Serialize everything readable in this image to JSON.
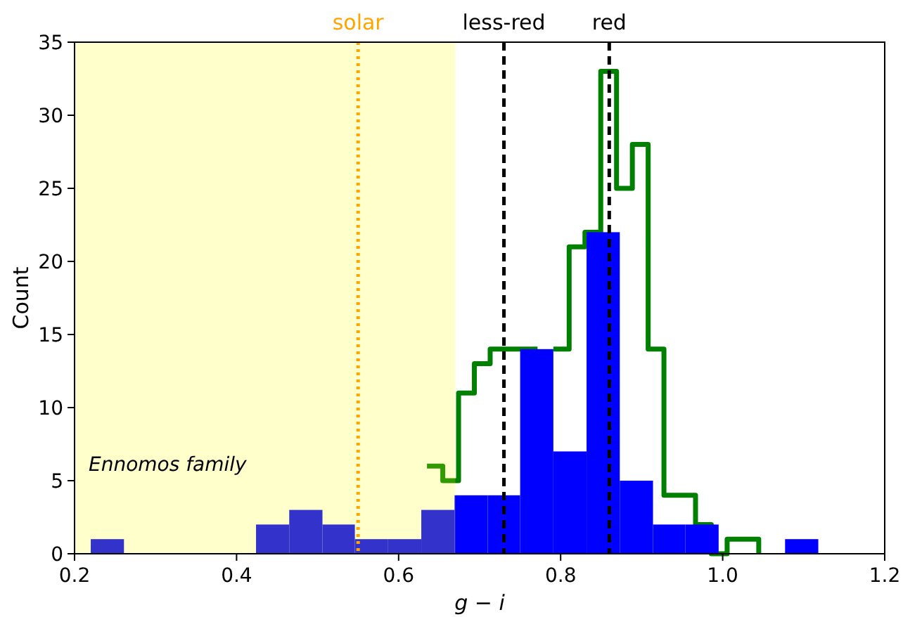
{
  "chart_data": {
    "type": "histogram",
    "xlabel": "g − i",
    "ylabel": "Count",
    "bins": [
      0.22,
      0.261,
      0.424,
      0.465,
      0.506,
      0.546,
      0.587,
      0.628,
      0.669,
      0.71,
      0.75,
      0.791,
      0.832,
      0.873,
      0.914,
      0.954,
      0.995,
      1.077,
      1.118
    ],
    "values": [
      1,
      0,
      2,
      3,
      2,
      1,
      1,
      3,
      4,
      4,
      14,
      7,
      22,
      5,
      2,
      2,
      0,
      1
    ],
    "color": "#0000ff",
    "series": [
      {
        "type": "step",
        "color": "#008000",
        "x": [
          0.635,
          0.6545,
          0.674,
          0.6935,
          0.713,
          0.7325,
          0.752,
          0.7715,
          0.791,
          0.8105,
          0.83,
          0.8495,
          0.869,
          0.8885,
          0.908,
          0.9275,
          0.947,
          0.9665,
          0.986,
          1.0055,
          1.025,
          1.0445
        ],
        "values": [
          6,
          5,
          11,
          13,
          14,
          14,
          14,
          null,
          14,
          21,
          22,
          33,
          25,
          28,
          14,
          4,
          4,
          2,
          0,
          1,
          1,
          0
        ]
      }
    ],
    "ref_lines": [
      {
        "axis": "x",
        "value": 0.55,
        "label": "solar",
        "color": "#ffa500",
        "line_style": "dotted"
      },
      {
        "axis": "x",
        "value": 0.73,
        "label": "less-red",
        "color": "#000000",
        "line_style": "dashed"
      },
      {
        "axis": "x",
        "value": 0.86,
        "label": "red",
        "color": "#000000",
        "line_style": "dashed"
      }
    ],
    "bands": [
      {
        "axis": "x",
        "from": 0.2,
        "to": 0.67,
        "label": "Ennomos family",
        "color": "#ffff00"
      }
    ],
    "xlim": [
      0.2,
      1.2
    ],
    "xticks": [
      0.2,
      0.4,
      0.6,
      0.8,
      {
        "value": 1,
        "label": "1.0"
      },
      1.2
    ],
    "ylim": [
      0,
      35
    ],
    "yticks": [
      0,
      5,
      10,
      15,
      20,
      25,
      30,
      35
    ]
  }
}
